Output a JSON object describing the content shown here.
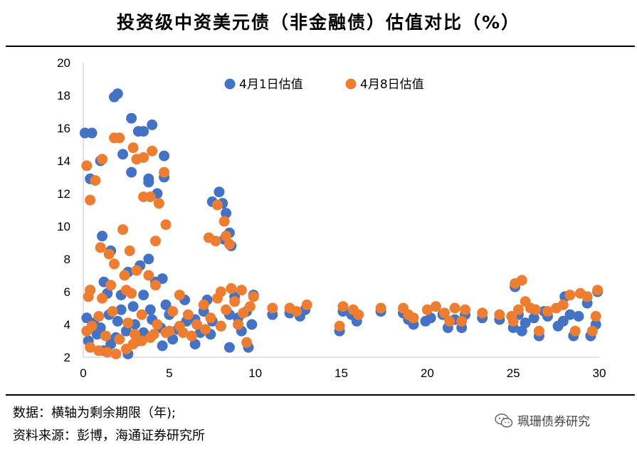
{
  "title": "投资级中资美元债（非金融债）估值对比（%）",
  "footer": {
    "note": "数据：横轴为剩余期限（年);",
    "source": "资料来源：彭博，海通证券研究所",
    "watermark": "珮珊债券研究"
  },
  "chart_data": {
    "type": "scatter",
    "title": "投资级中资美元债（非金融债）估值对比（%）",
    "xlabel": "",
    "ylabel": "",
    "xlim": [
      0,
      30
    ],
    "ylim": [
      2,
      20
    ],
    "xticks": [
      0,
      5,
      10,
      15,
      20,
      25,
      30
    ],
    "yticks": [
      2,
      4,
      6,
      8,
      10,
      12,
      14,
      16,
      18,
      20
    ],
    "legend_position": "top-center",
    "series": [
      {
        "name": "4月1日估值",
        "color": "#4472C4",
        "points": [
          [
            0.1,
            15.7
          ],
          [
            0.5,
            15.7
          ],
          [
            0.4,
            12.9
          ],
          [
            1.0,
            14.0
          ],
          [
            1.1,
            9.4
          ],
          [
            1.6,
            8.5
          ],
          [
            1.2,
            6.6
          ],
          [
            1.4,
            5.9
          ],
          [
            1.8,
            17.9
          ],
          [
            2.0,
            18.1
          ],
          [
            2.3,
            14.4
          ],
          [
            2.8,
            16.6
          ],
          [
            2.8,
            13.3
          ],
          [
            3.2,
            15.8
          ],
          [
            3.5,
            15.8
          ],
          [
            3.8,
            12.7
          ],
          [
            3.8,
            12.9
          ],
          [
            4.0,
            16.2
          ],
          [
            4.3,
            12.0
          ],
          [
            4.7,
            14.3
          ],
          [
            4.7,
            13.0
          ],
          [
            3.8,
            8.0
          ],
          [
            3.3,
            7.6
          ],
          [
            2.6,
            7.2
          ],
          [
            4.6,
            6.8
          ],
          [
            4.2,
            6.6
          ],
          [
            2.2,
            5.8
          ],
          [
            0.4,
            6.1
          ],
          [
            3.5,
            5.8
          ],
          [
            7.5,
            11.5
          ],
          [
            7.9,
            12.1
          ],
          [
            8.1,
            11.4
          ],
          [
            8.3,
            10.8
          ],
          [
            8.5,
            9.6
          ],
          [
            8.6,
            8.8
          ],
          [
            8.2,
            9.2
          ],
          [
            0.2,
            4.4
          ],
          [
            0.6,
            4.1
          ],
          [
            1.0,
            3.8
          ],
          [
            1.5,
            4.6
          ],
          [
            2.0,
            4.2
          ],
          [
            2.5,
            3.6
          ],
          [
            3.0,
            4.0
          ],
          [
            3.5,
            3.5
          ],
          [
            4.0,
            4.3
          ],
          [
            4.5,
            3.8
          ],
          [
            5.0,
            4.6
          ],
          [
            5.5,
            3.7
          ],
          [
            6.0,
            4.2
          ],
          [
            6.5,
            4.3
          ],
          [
            7.0,
            4.8
          ],
          [
            7.5,
            4.2
          ],
          [
            8.0,
            3.9
          ],
          [
            8.5,
            4.6
          ],
          [
            9.0,
            4.4
          ],
          [
            9.5,
            4.8
          ],
          [
            1.2,
            2.4
          ],
          [
            2.6,
            2.2
          ],
          [
            4.6,
            2.7
          ],
          [
            6.5,
            2.8
          ],
          [
            8.5,
            2.6
          ],
          [
            9.6,
            2.6
          ],
          [
            0.3,
            3.0
          ],
          [
            1.9,
            3.2
          ],
          [
            3.2,
            3.0
          ],
          [
            5.2,
            3.1
          ],
          [
            6.8,
            3.5
          ],
          [
            7.4,
            3.4
          ],
          [
            9.2,
            3.6
          ],
          [
            9.8,
            4.0
          ],
          [
            5.9,
            5.5
          ],
          [
            7.2,
            5.5
          ],
          [
            8.8,
            5.7
          ],
          [
            9.9,
            5.8
          ],
          [
            0.8,
            3.4
          ],
          [
            1.6,
            2.8
          ],
          [
            2.2,
            4.9
          ],
          [
            2.9,
            5.1
          ],
          [
            3.9,
            4.9
          ],
          [
            4.8,
            5.2
          ],
          [
            11.0,
            4.6
          ],
          [
            12.0,
            4.7
          ],
          [
            12.6,
            4.5
          ],
          [
            12.9,
            4.9
          ],
          [
            14.9,
            3.6
          ],
          [
            15.1,
            4.8
          ],
          [
            15.6,
            4.6
          ],
          [
            15.9,
            4.2
          ],
          [
            17.3,
            4.8
          ],
          [
            18.6,
            4.7
          ],
          [
            18.9,
            4.3
          ],
          [
            19.2,
            4.0
          ],
          [
            19.9,
            4.2
          ],
          [
            20.2,
            4.4
          ],
          [
            20.9,
            4.6
          ],
          [
            21.2,
            3.8
          ],
          [
            21.6,
            4.3
          ],
          [
            22.0,
            3.8
          ],
          [
            22.2,
            4.6
          ],
          [
            23.2,
            4.4
          ],
          [
            24.2,
            4.3
          ],
          [
            25.0,
            3.8
          ],
          [
            25.1,
            6.3
          ],
          [
            25.5,
            3.6
          ],
          [
            25.7,
            4.1
          ],
          [
            26.2,
            4.4
          ],
          [
            26.5,
            3.3
          ],
          [
            27.0,
            4.5
          ],
          [
            27.6,
            3.9
          ],
          [
            27.9,
            4.2
          ],
          [
            28.3,
            4.6
          ],
          [
            28.5,
            3.3
          ],
          [
            28.8,
            4.5
          ],
          [
            29.3,
            5.3
          ],
          [
            29.5,
            3.3
          ],
          [
            29.8,
            4.0
          ],
          [
            29.9,
            6.0
          ],
          [
            25.3,
            4.6
          ],
          [
            26.8,
            4.8
          ],
          [
            28.0,
            5.7
          ]
        ]
      },
      {
        "name": "4月8日估值",
        "color": "#ED7D31",
        "points": [
          [
            0.2,
            13.7
          ],
          [
            0.4,
            11.6
          ],
          [
            0.7,
            12.8
          ],
          [
            1.1,
            14.1
          ],
          [
            1.0,
            8.7
          ],
          [
            1.5,
            8.3
          ],
          [
            1.8,
            7.7
          ],
          [
            1.6,
            6.4
          ],
          [
            0.3,
            5.7
          ],
          [
            0.4,
            6.1
          ],
          [
            1.8,
            15.4
          ],
          [
            2.1,
            15.4
          ],
          [
            2.3,
            9.8
          ],
          [
            2.7,
            8.5
          ],
          [
            2.9,
            14.8
          ],
          [
            3.1,
            14.1
          ],
          [
            3.5,
            14.2
          ],
          [
            3.5,
            11.8
          ],
          [
            3.9,
            11.8
          ],
          [
            4.0,
            14.6
          ],
          [
            4.2,
            9.1
          ],
          [
            4.7,
            13.3
          ],
          [
            4.8,
            10.1
          ],
          [
            4.4,
            11.4
          ],
          [
            3.8,
            7.0
          ],
          [
            4.2,
            6.4
          ],
          [
            3.1,
            7.3
          ],
          [
            2.4,
            7.0
          ],
          [
            2.5,
            6.1
          ],
          [
            7.3,
            9.3
          ],
          [
            7.7,
            9.1
          ],
          [
            7.8,
            11.3
          ],
          [
            8.2,
            10.3
          ],
          [
            8.3,
            9.4
          ],
          [
            8.5,
            8.9
          ],
          [
            8.0,
            6.0
          ],
          [
            8.6,
            6.2
          ],
          [
            9.2,
            6.1
          ],
          [
            9.9,
            5.7
          ],
          [
            0.2,
            3.6
          ],
          [
            0.5,
            3.9
          ],
          [
            0.9,
            4.5
          ],
          [
            1.3,
            3.3
          ],
          [
            1.7,
            4.8
          ],
          [
            2.1,
            3.1
          ],
          [
            2.6,
            4.1
          ],
          [
            3.0,
            3.4
          ],
          [
            3.4,
            4.6
          ],
          [
            3.9,
            3.2
          ],
          [
            4.3,
            4.0
          ],
          [
            4.8,
            3.5
          ],
          [
            5.2,
            4.8
          ],
          [
            5.6,
            3.9
          ],
          [
            6.1,
            4.6
          ],
          [
            6.6,
            4.0
          ],
          [
            7.0,
            5.2
          ],
          [
            7.4,
            4.4
          ],
          [
            7.8,
            5.6
          ],
          [
            8.3,
            4.9
          ],
          [
            8.8,
            5.4
          ],
          [
            9.3,
            4.7
          ],
          [
            9.7,
            5.1
          ],
          [
            0.4,
            2.6
          ],
          [
            0.9,
            2.4
          ],
          [
            1.4,
            2.3
          ],
          [
            1.9,
            2.2
          ],
          [
            2.5,
            2.5
          ],
          [
            2.9,
            2.8
          ],
          [
            3.4,
            3.0
          ],
          [
            4.1,
            3.4
          ],
          [
            5.0,
            3.6
          ],
          [
            5.8,
            3.5
          ],
          [
            6.3,
            3.3
          ],
          [
            7.1,
            3.7
          ],
          [
            8.0,
            3.9
          ],
          [
            9.0,
            4.0
          ],
          [
            9.5,
            2.9
          ],
          [
            1.1,
            5.6
          ],
          [
            2.8,
            5.9
          ],
          [
            5.6,
            5.8
          ],
          [
            11.0,
            5.0
          ],
          [
            12.0,
            5.0
          ],
          [
            12.4,
            4.8
          ],
          [
            13.0,
            5.2
          ],
          [
            14.9,
            3.9
          ],
          [
            15.1,
            5.1
          ],
          [
            15.7,
            4.9
          ],
          [
            16.0,
            4.6
          ],
          [
            17.3,
            5.0
          ],
          [
            18.6,
            5.0
          ],
          [
            18.9,
            4.6
          ],
          [
            19.2,
            4.4
          ],
          [
            20.0,
            4.9
          ],
          [
            20.5,
            5.1
          ],
          [
            21.0,
            4.7
          ],
          [
            21.3,
            4.2
          ],
          [
            21.6,
            5.0
          ],
          [
            22.0,
            4.2
          ],
          [
            22.2,
            4.9
          ],
          [
            23.2,
            4.7
          ],
          [
            24.2,
            4.6
          ],
          [
            24.9,
            4.5
          ],
          [
            25.0,
            4.2
          ],
          [
            25.1,
            6.5
          ],
          [
            25.5,
            6.7
          ],
          [
            25.7,
            5.4
          ],
          [
            26.3,
            4.9
          ],
          [
            26.5,
            3.6
          ],
          [
            27.0,
            4.8
          ],
          [
            27.5,
            5.0
          ],
          [
            27.9,
            5.2
          ],
          [
            28.3,
            5.8
          ],
          [
            28.6,
            3.6
          ],
          [
            28.9,
            5.9
          ],
          [
            29.3,
            5.7
          ],
          [
            29.6,
            3.6
          ],
          [
            29.8,
            4.5
          ],
          [
            29.9,
            6.1
          ],
          [
            25.3,
            4.9
          ],
          [
            26.0,
            5.0
          ]
        ]
      }
    ]
  }
}
